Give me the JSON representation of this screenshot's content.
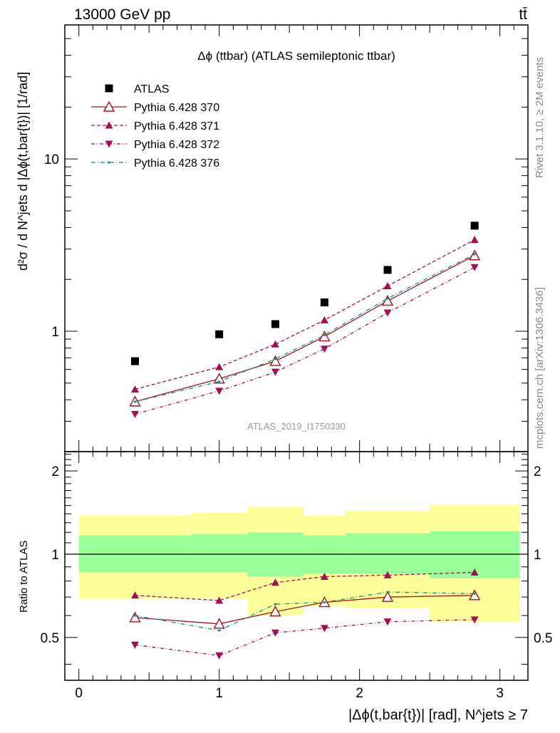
{
  "header": {
    "energy": "13000 GeV pp",
    "process": "tt̄"
  },
  "side_text": {
    "rivet": "Rivet 3.1.10, ≥ 2M events",
    "source": "mcplots.cern.ch [arXiv:1306.3436]"
  },
  "chart_data": {
    "type": "line",
    "title": "Δϕ (ttbar) (ATLAS semileptonic ttbar)",
    "analysis_label": "ATLAS_2019_I1750330",
    "xlabel": "|Δϕ(t,bar{t})| [rad], N^jets ≥ 7",
    "ylabel": "d²σ / d N^jets d |Δϕ(t,bar{t})| [1/rad]",
    "ratio_ylabel": "Ratio to ATLAS",
    "xlim": [
      -0.1,
      3.2
    ],
    "ylim": [
      0.2,
      60
    ],
    "ylog": true,
    "ratio_ylim": [
      0.35,
      2.35
    ],
    "x_ticks": [
      "0",
      "1",
      "2",
      "3"
    ],
    "y_ticks": [
      "1",
      "10"
    ],
    "ratio_ticks": [
      "0.5",
      "1",
      "2"
    ],
    "bin_edges": [
      0,
      0.8,
      1.2,
      1.6,
      1.9,
      2.5,
      3.14
    ],
    "x": [
      0.4,
      1.0,
      1.4,
      1.75,
      2.2,
      2.82
    ],
    "band_inner": [
      [
        0.86,
        1.17
      ],
      [
        0.86,
        1.18
      ],
      [
        0.83,
        1.2
      ],
      [
        0.85,
        1.17
      ],
      [
        0.85,
        1.19
      ],
      [
        0.82,
        1.21
      ]
    ],
    "band_outer": [
      [
        0.69,
        1.38
      ],
      [
        0.69,
        1.41
      ],
      [
        0.6,
        1.48
      ],
      [
        0.65,
        1.38
      ],
      [
        0.64,
        1.43
      ],
      [
        0.57,
        1.51
      ]
    ],
    "series": [
      {
        "name": "ATLAS",
        "color": "#000000",
        "marker": "square",
        "dash": "",
        "values": [
          0.67,
          0.96,
          1.1,
          1.47,
          2.27,
          4.1
        ],
        "ratio": [
          1,
          1,
          1,
          1,
          1,
          1
        ]
      },
      {
        "name": "Pythia 6.428 370",
        "color": "#a0141e",
        "marker": "triangle-open",
        "dash": "",
        "values": [
          0.39,
          0.53,
          0.67,
          0.93,
          1.5,
          2.75
        ],
        "ratio": [
          0.59,
          0.56,
          0.62,
          0.67,
          0.7,
          0.71
        ]
      },
      {
        "name": "Pythia 6.428 371",
        "color": "#a30f55",
        "marker": "triangle-up",
        "dash": "5,3",
        "values": [
          0.46,
          0.62,
          0.84,
          1.16,
          1.83,
          3.4
        ],
        "ratio": [
          0.71,
          0.68,
          0.79,
          0.83,
          0.84,
          0.86
        ]
      },
      {
        "name": "Pythia 6.428 372",
        "color": "#a30f55",
        "marker": "triangle-down",
        "dash": "5,3,1,3",
        "values": [
          0.33,
          0.45,
          0.58,
          0.79,
          1.28,
          2.35
        ],
        "ratio": [
          0.47,
          0.43,
          0.52,
          0.54,
          0.57,
          0.58
        ]
      },
      {
        "name": "Pythia 6.428 376",
        "color": "#11907a",
        "marker": "dot",
        "dash": "6,3,1,3",
        "values": [
          0.39,
          0.51,
          0.69,
          0.95,
          1.55,
          2.8
        ],
        "ratio": [
          0.6,
          0.53,
          0.66,
          0.67,
          0.73,
          0.72
        ]
      }
    ]
  }
}
